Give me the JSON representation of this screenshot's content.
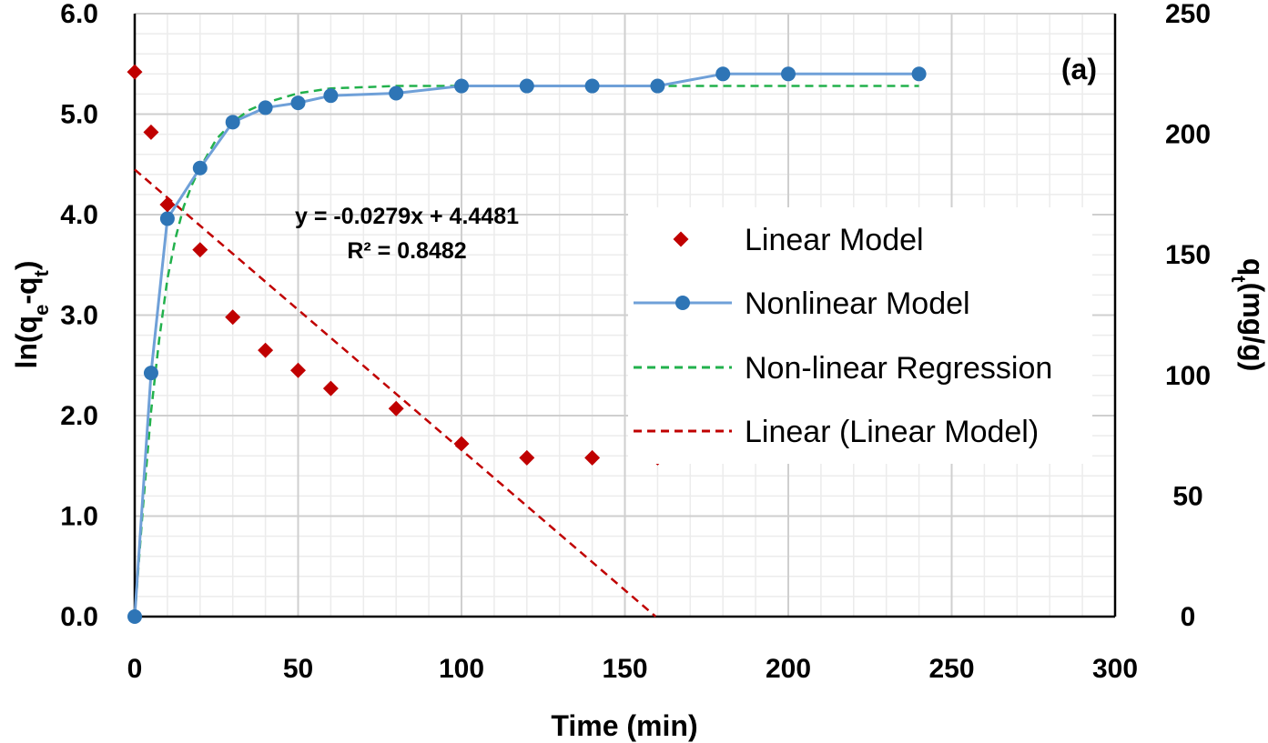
{
  "chart_data": {
    "type": "line",
    "panel_label": "(a)",
    "xlabel": "Time (min)",
    "ylabel_left": {
      "prefix": "ln(q",
      "sub1": "e",
      "mid": "-q",
      "sub2": "t",
      "suffix": ")"
    },
    "ylabel_right": {
      "prefix": "q",
      "sub": "t",
      "suffix": "(mg/g)"
    },
    "xlim": [
      0,
      300
    ],
    "ylim_left": [
      0,
      6
    ],
    "ylim_right": [
      0,
      250
    ],
    "x_ticks": [
      "0",
      "50",
      "100",
      "150",
      "200",
      "250",
      "300"
    ],
    "y_left_ticks": [
      "0.0",
      "1.0",
      "2.0",
      "3.0",
      "4.0",
      "5.0",
      "6.0"
    ],
    "y_right_ticks": [
      "0",
      "50",
      "100",
      "150",
      "200",
      "250"
    ],
    "grid": true,
    "legend_position": "center-right",
    "trendline_equation": "y = -0.0279x + 4.4481",
    "r_squared_label": "R² = 0.8482",
    "series": [
      {
        "name": "Linear Model",
        "axis": "left",
        "style": "markers",
        "color": "#c00000",
        "x": [
          0,
          5,
          10,
          20,
          30,
          40,
          50,
          60,
          80,
          100,
          120,
          140,
          160
        ],
        "y": [
          5.42,
          4.82,
          4.1,
          3.65,
          2.98,
          2.65,
          2.45,
          2.27,
          2.07,
          1.72,
          1.58,
          1.58,
          1.58
        ]
      },
      {
        "name": "Nonlinear Model",
        "axis": "right",
        "style": "line-markers",
        "color": "#2e75b6",
        "line_color": "#6fa0d8",
        "x": [
          0,
          5,
          10,
          20,
          30,
          40,
          50,
          60,
          80,
          100,
          120,
          140,
          160,
          180,
          200,
          240
        ],
        "y": [
          0,
          101,
          165,
          186,
          205,
          211,
          213,
          216,
          217,
          220,
          220,
          220,
          220,
          225,
          225,
          225
        ]
      },
      {
        "name": "Non-linear Regression",
        "axis": "right",
        "style": "dashed",
        "color": "#22b14c",
        "x": [
          0,
          2.5,
          5,
          7.5,
          10,
          12.5,
          15,
          17.5,
          20,
          25,
          30,
          35,
          40,
          45,
          50,
          60,
          70,
          80,
          100,
          120,
          140,
          160,
          180,
          200,
          240
        ],
        "y": [
          0,
          45,
          85,
          115,
          140,
          157,
          170,
          179,
          186,
          198,
          205,
          210,
          213,
          215,
          217,
          219,
          219.5,
          220,
          220,
          220,
          220,
          220,
          220,
          220,
          220
        ]
      },
      {
        "name": "Linear (Linear Model)",
        "axis": "left",
        "style": "dashed",
        "color": "#c00000",
        "slope": -0.0279,
        "intercept": 4.4481,
        "x_range": [
          0,
          159.4
        ]
      }
    ]
  }
}
